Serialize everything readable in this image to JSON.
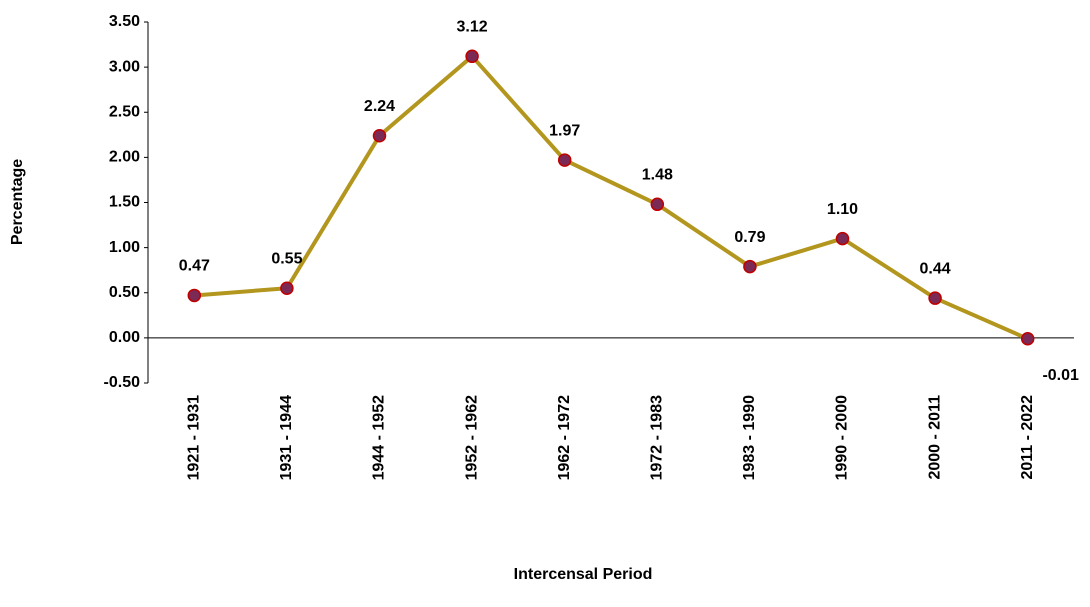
{
  "chart_data": {
    "type": "line",
    "x_label": "Intercensal Period",
    "y_label": "Percentage",
    "categories": [
      "1921 - 1931",
      "1931 - 1944",
      "1944 - 1952",
      "1952 - 1962",
      "1962 - 1972",
      "1972 - 1983",
      "1983 - 1990",
      "1990 - 2000",
      "2000 - 2011",
      "2011  - 2022"
    ],
    "series": [
      {
        "color": "#b3961e",
        "marker_color": "#7a2a55",
        "marker_edge": "#c00000",
        "values": [
          0.47,
          0.55,
          2.24,
          3.12,
          1.97,
          1.48,
          0.79,
          1.1,
          0.44,
          -0.01
        ],
        "value_labels": [
          "0.47",
          "0.55",
          "2.24",
          "3.12",
          "1.97",
          "1.48",
          "0.79",
          "1.10",
          "0.44",
          "-0.01"
        ]
      }
    ],
    "ylim": [
      -0.5,
      3.5
    ],
    "yticks": [
      {
        "value": -0.5,
        "label": "-0.50"
      },
      {
        "value": 0,
        "label": "0.00"
      },
      {
        "value": 0.5,
        "label": "0.50"
      },
      {
        "value": 1,
        "label": "1.00"
      },
      {
        "value": 1.5,
        "label": "1.50"
      },
      {
        "value": 2,
        "label": "2.00"
      },
      {
        "value": 2.5,
        "label": "2.50"
      },
      {
        "value": 3,
        "label": "3.00"
      },
      {
        "value": 3.5,
        "label": "3.50"
      }
    ],
    "grid": false
  }
}
